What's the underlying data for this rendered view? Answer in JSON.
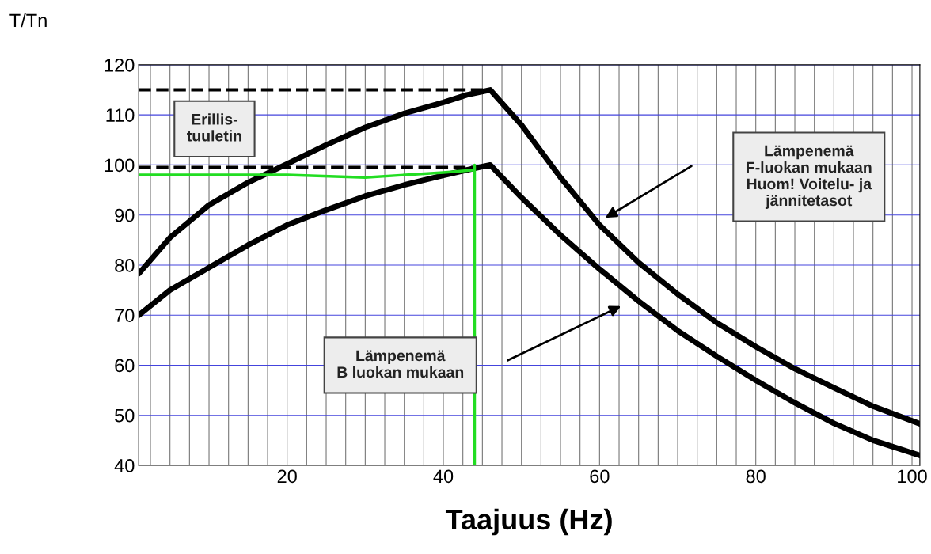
{
  "chart_data": {
    "type": "line",
    "xlabel": "Taajuus (Hz)",
    "ylabel": "T/Tn",
    "xlim": [
      1,
      101
    ],
    "ylim": [
      40,
      120
    ],
    "xticks": [
      {
        "value": 2.5,
        "label": null
      },
      {
        "value": 5,
        "label": null
      },
      {
        "value": 7.5,
        "label": null
      },
      {
        "value": 10,
        "label": null
      },
      {
        "value": 12.5,
        "label": null
      },
      {
        "value": 15,
        "label": null
      },
      {
        "value": 17.5,
        "label": null
      },
      20,
      {
        "value": 22.5,
        "label": null
      },
      {
        "value": 25,
        "label": null
      },
      {
        "value": 27.5,
        "label": null
      },
      {
        "value": 30,
        "label": null
      },
      {
        "value": 32.5,
        "label": null
      },
      {
        "value": 35,
        "label": null
      },
      {
        "value": 37.5,
        "label": null
      },
      40,
      {
        "value": 42.5,
        "label": null
      },
      {
        "value": 45,
        "label": null
      },
      {
        "value": 47.5,
        "label": null
      },
      {
        "value": 50,
        "label": null
      },
      {
        "value": 52.5,
        "label": null
      },
      {
        "value": 55,
        "label": null
      },
      {
        "value": 57.5,
        "label": null
      },
      60,
      {
        "value": 62.5,
        "label": null
      },
      {
        "value": 65,
        "label": null
      },
      {
        "value": 67.5,
        "label": null
      },
      {
        "value": 70,
        "label": null
      },
      {
        "value": 72.5,
        "label": null
      },
      {
        "value": 75,
        "label": null
      },
      {
        "value": 77.5,
        "label": null
      },
      80,
      {
        "value": 82.5,
        "label": null
      },
      {
        "value": 85,
        "label": null
      },
      {
        "value": 87.5,
        "label": null
      },
      {
        "value": 90,
        "label": null
      },
      {
        "value": 92.5,
        "label": null
      },
      {
        "value": 95,
        "label": null
      },
      {
        "value": 97.5,
        "label": null
      },
      100
    ],
    "yticks": [
      40,
      50,
      60,
      70,
      80,
      90,
      100,
      110,
      120
    ],
    "grid": true,
    "legend": false,
    "series": [
      {
        "color": "#000000",
        "x": [
          1,
          5,
          10,
          15,
          20,
          25,
          30,
          35,
          40,
          43,
          46,
          50,
          55,
          60,
          65,
          70,
          75,
          80,
          85,
          90,
          95,
          101
        ],
        "values": [
          78.3,
          85.5,
          92,
          96.5,
          100.2,
          104,
          107.5,
          110.3,
          112.5,
          114,
          115,
          108,
          97.5,
          88,
          80.5,
          74.2,
          68.5,
          63.7,
          59.3,
          55.5,
          51.8,
          48.3
        ]
      },
      {
        "color": "#000000",
        "x": [
          1,
          5,
          10,
          15,
          20,
          25,
          30,
          35,
          40,
          43,
          46,
          50,
          55,
          60,
          65,
          70,
          75,
          80,
          85,
          90,
          95,
          101
        ],
        "values": [
          70,
          75,
          79.5,
          84,
          88,
          91,
          93.8,
          96,
          97.9,
          99,
          100,
          93.5,
          86,
          79.2,
          72.8,
          66.9,
          61.8,
          57,
          52.5,
          48.4,
          45,
          42
        ]
      },
      {
        "color": "#000000",
        "line_style": "dashed",
        "x": [
          1,
          46
        ],
        "values": [
          115,
          115
        ]
      },
      {
        "color": "#000000",
        "line_style": "dashed",
        "x": [
          1,
          46
        ],
        "values": [
          99.5,
          99.5
        ]
      },
      {
        "color": "#22dd22",
        "x": [
          1,
          10,
          20,
          30,
          40,
          44,
          44,
          44
        ],
        "values": [
          98,
          98,
          98,
          97.5,
          98.5,
          99,
          100,
          40
        ]
      }
    ],
    "annotations": [
      "Erillis-\ntuuletin",
      "Lämpenemä\nF-luokan mukaan\nHuom! Voitelu- ja\njännitetasot",
      "Lämpenemä\nB luokan mukaan"
    ]
  }
}
